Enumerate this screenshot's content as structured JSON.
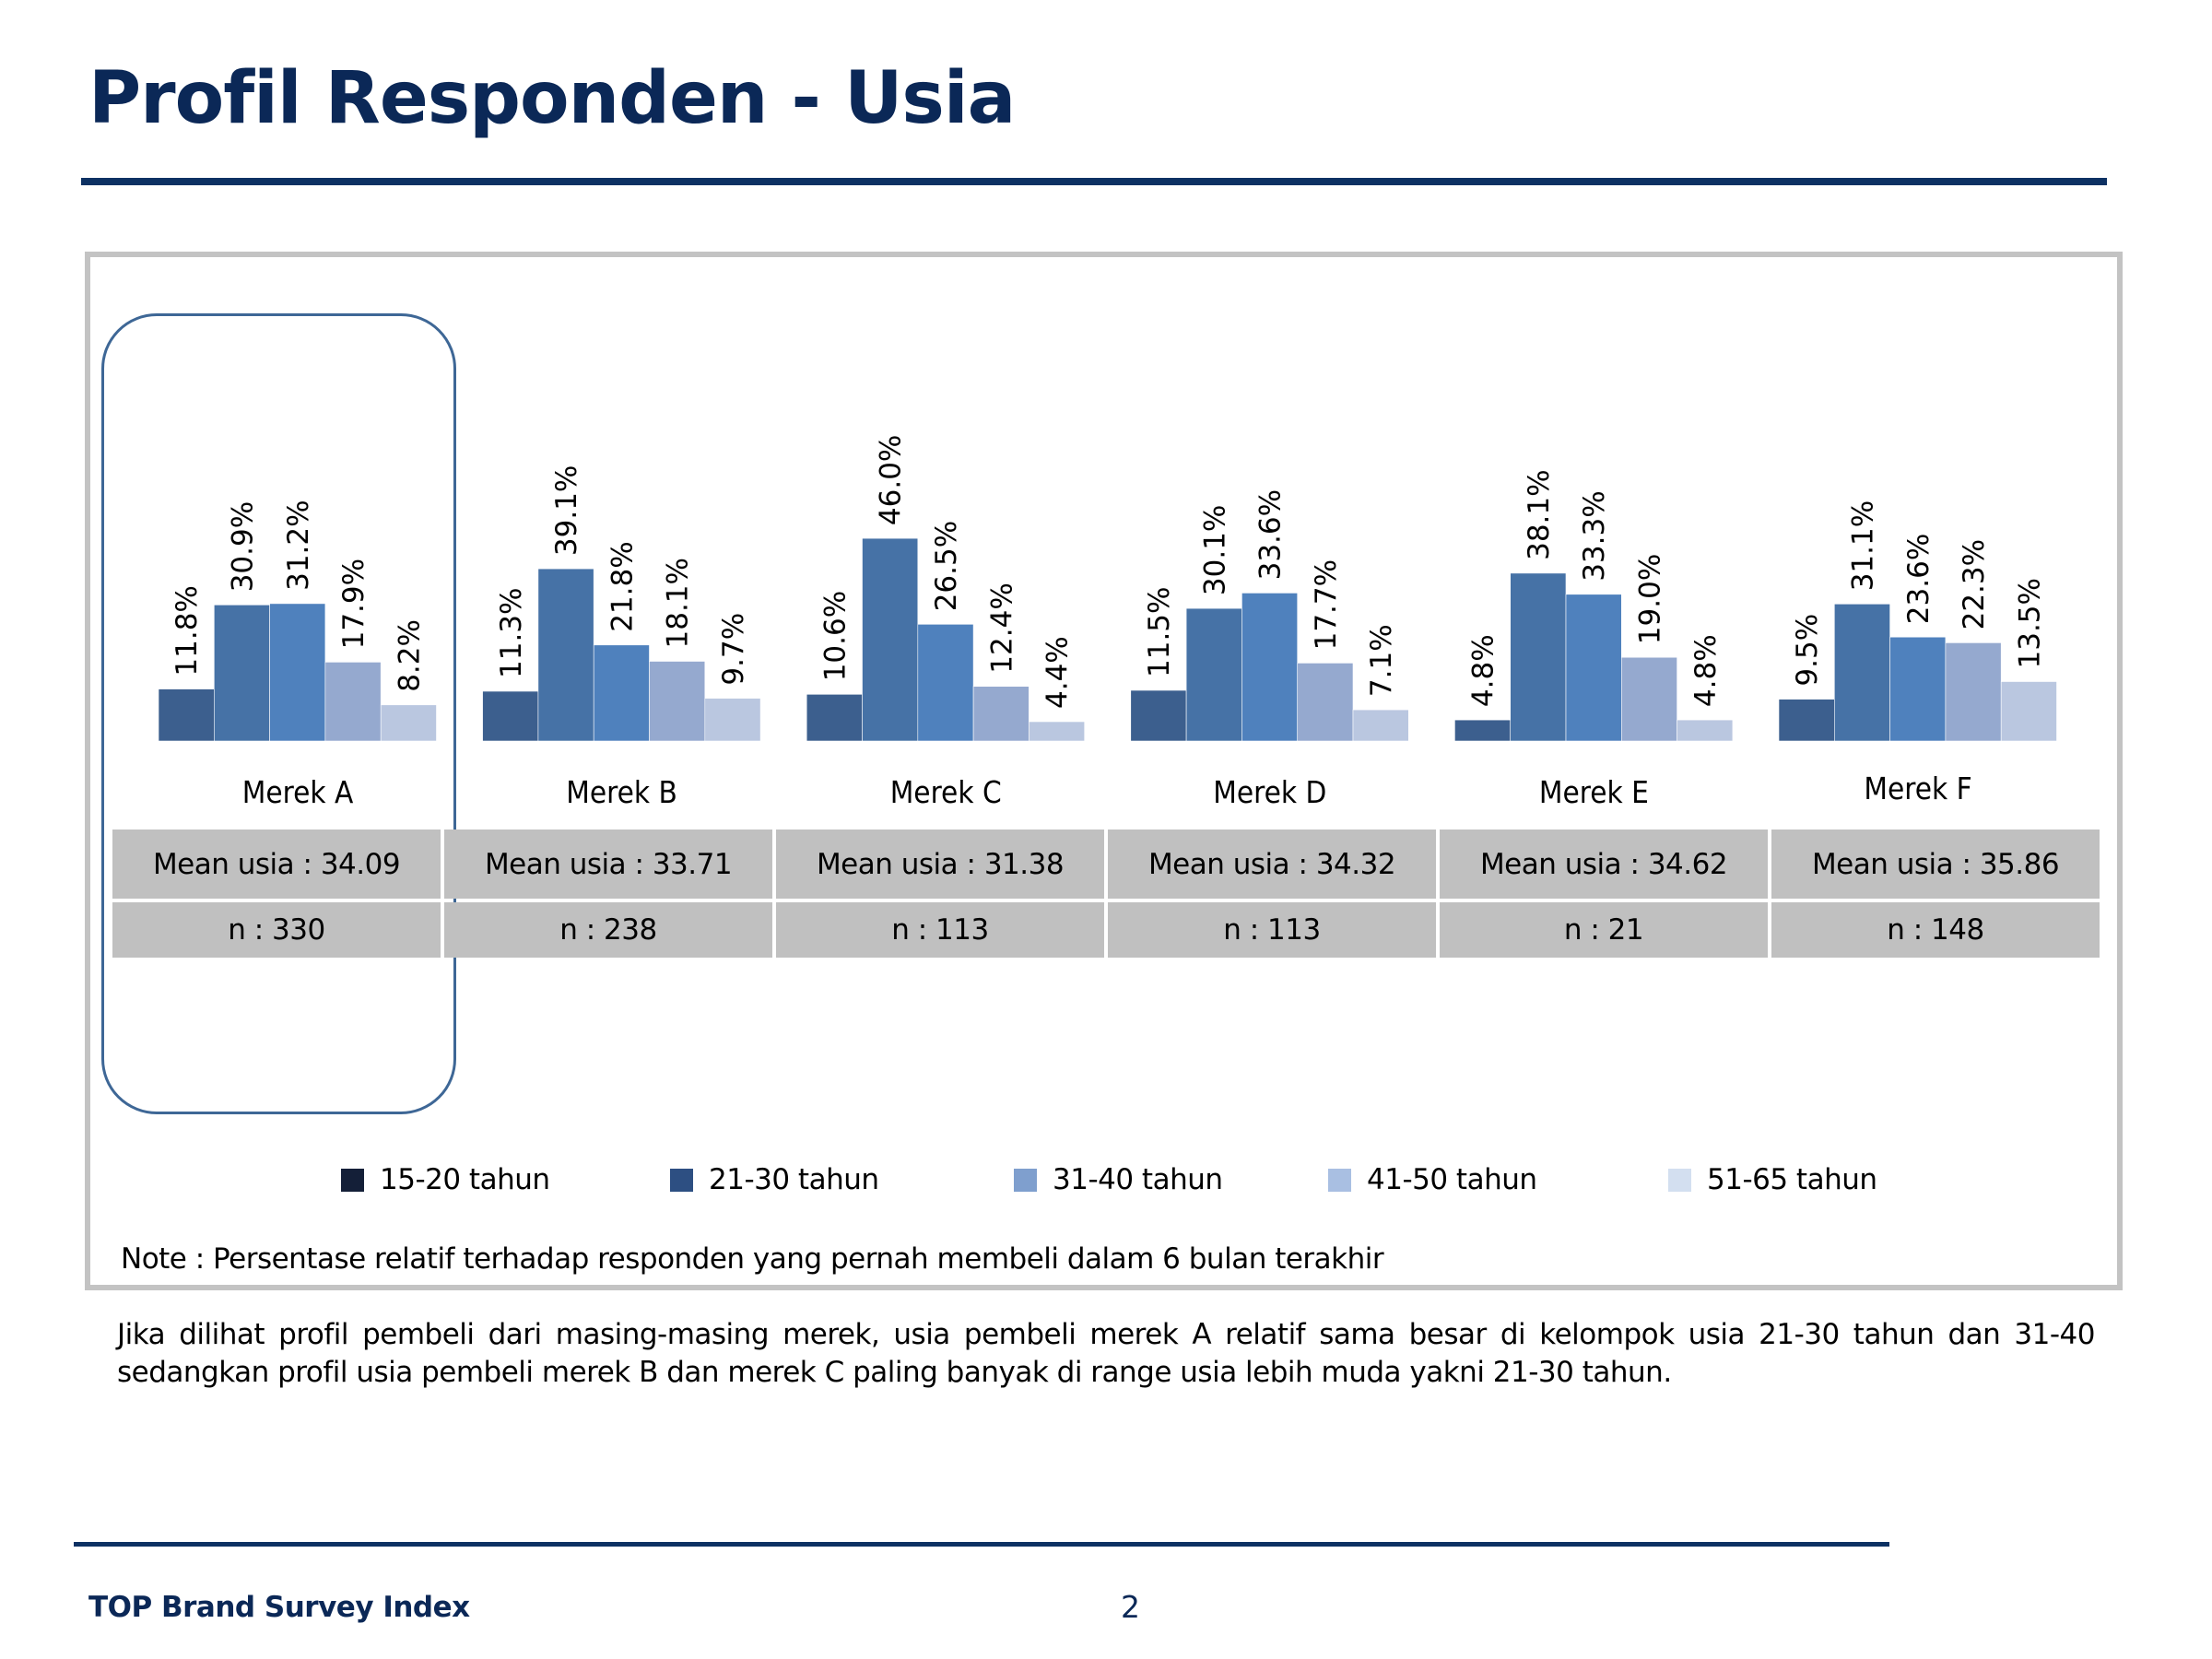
{
  "page": {
    "title": "Profil Responden - Usia",
    "note": "Note : Persentase relatif terhadap responden yang pernah membeli dalam 6 bulan terakhir",
    "summary": "Jika dilihat profil pembeli dari masing-masing merek, usia pembeli merek A relatif sama besar di kelompok usia 21-30 tahun dan 31-40 sedangkan profil usia pembeli merek B dan merek C paling banyak di range usia lebih muda yakni 21-30 tahun.",
    "footer_brand": "TOP Brand Survey Index",
    "page_number": "2",
    "highlighted_brand": "Merek A"
  },
  "colors": {
    "title": "#0b2857",
    "rule": "#0d3163",
    "frame": "#c3c3c3",
    "table_cell": "#c0c0c0",
    "highlight_border": "#3e6796",
    "bars": [
      "#3c5f8e",
      "#4672a6",
      "#4f81bd",
      "#95a9cf",
      "#bac7e0"
    ],
    "legend": [
      "#141f38",
      "#2d4f82",
      "#7f9fce",
      "#a9bfe2",
      "#d3dff0"
    ]
  },
  "stats": [
    {
      "mean": "Mean usia : 34.09",
      "n": "n : 330"
    },
    {
      "mean": "Mean usia : 33.71",
      "n": "n : 238"
    },
    {
      "mean": "Mean usia : 31.38",
      "n": "n : 113"
    },
    {
      "mean": "Mean usia : 34.32",
      "n": "n : 113"
    },
    {
      "mean": "Mean usia : 34.62",
      "n": "n : 21"
    },
    {
      "mean": "Mean usia : 35.86",
      "n": "n : 148"
    }
  ],
  "chart_data": {
    "type": "bar",
    "title": "",
    "xlabel": "",
    "ylabel": "",
    "ylim": [
      0,
      50
    ],
    "grid": false,
    "legend_position": "bottom",
    "value_format": "percent-1dp",
    "categories": [
      "Merek A",
      "Merek B",
      "Merek C",
      "Merek D",
      "Merek E",
      "Merek F"
    ],
    "series": [
      {
        "name": "15-20 tahun",
        "values": [
          11.8,
          11.3,
          10.6,
          11.5,
          4.8,
          9.5
        ]
      },
      {
        "name": "21-30 tahun",
        "values": [
          30.9,
          39.1,
          46.0,
          30.1,
          38.1,
          31.1
        ]
      },
      {
        "name": "31-40 tahun",
        "values": [
          31.2,
          21.8,
          26.5,
          33.6,
          33.3,
          23.6
        ]
      },
      {
        "name": "41-50 tahun",
        "values": [
          17.9,
          18.1,
          12.4,
          17.7,
          19.0,
          22.3
        ]
      },
      {
        "name": "51-65 tahun",
        "values": [
          8.2,
          9.7,
          4.4,
          7.1,
          4.8,
          13.5
        ]
      }
    ]
  }
}
